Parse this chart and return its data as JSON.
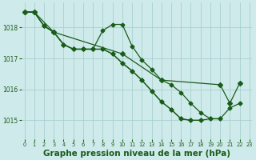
{
  "bg_color": "#ceeaea",
  "grid_color": "#aad0d0",
  "line_color": "#1a5c1a",
  "xlabel": "Graphe pression niveau de la mer (hPa)",
  "xlabel_fontsize": 7.5,
  "ylim": [
    1014.4,
    1018.8
  ],
  "yticks": [
    1015,
    1016,
    1017,
    1018
  ],
  "xlim": [
    -0.3,
    23.3
  ],
  "xticks": [
    0,
    1,
    2,
    3,
    4,
    5,
    6,
    7,
    8,
    9,
    10,
    11,
    12,
    13,
    14,
    15,
    16,
    17,
    18,
    19,
    20,
    21,
    22,
    23
  ],
  "line_A": {
    "x": [
      0,
      1,
      2,
      3,
      4,
      5,
      6,
      7,
      8,
      9,
      10,
      11,
      12,
      13,
      14,
      15,
      16,
      17,
      18,
      19,
      20,
      21,
      22
    ],
    "y": [
      1018.5,
      1018.5,
      1018.05,
      1017.85,
      1017.45,
      1017.3,
      1017.3,
      1017.3,
      1017.3,
      1017.15,
      1016.85,
      1016.6,
      1016.3,
      1015.95,
      1015.6,
      1015.35,
      1015.05,
      1015.0,
      1015.0,
      1015.05,
      1015.05,
      1015.4,
      1015.55
    ]
  },
  "line_B": {
    "x": [
      0,
      1,
      2,
      3,
      4,
      5,
      6,
      7,
      8,
      9,
      10,
      11,
      12,
      13,
      14,
      15,
      16,
      17,
      18,
      19,
      20
    ],
    "y": [
      1018.5,
      1018.5,
      1018.05,
      1017.85,
      1017.45,
      1017.3,
      1017.3,
      1017.3,
      1017.9,
      1018.1,
      1018.1,
      1017.4,
      1016.95,
      1016.65,
      1016.3,
      1016.15,
      1015.9,
      1015.55,
      1015.25,
      1015.05,
      1015.05
    ]
  },
  "line_C": {
    "x": [
      0,
      1,
      2,
      3,
      4,
      5,
      6,
      7,
      8,
      9,
      10,
      11,
      12,
      13,
      14,
      15,
      16,
      17,
      18
    ],
    "y": [
      1018.5,
      1018.5,
      1018.05,
      1017.85,
      1017.45,
      1017.3,
      1017.3,
      1017.3,
      1017.3,
      1017.15,
      1016.85,
      1016.6,
      1016.3,
      1015.95,
      1015.6,
      1015.35,
      1015.05,
      1015.0,
      1015.0
    ]
  },
  "line_D": {
    "x": [
      0,
      1,
      3,
      10,
      14,
      20,
      21,
      22
    ],
    "y": [
      1018.5,
      1018.5,
      1017.85,
      1017.15,
      1016.3,
      1016.15,
      1015.55,
      1016.2
    ]
  }
}
